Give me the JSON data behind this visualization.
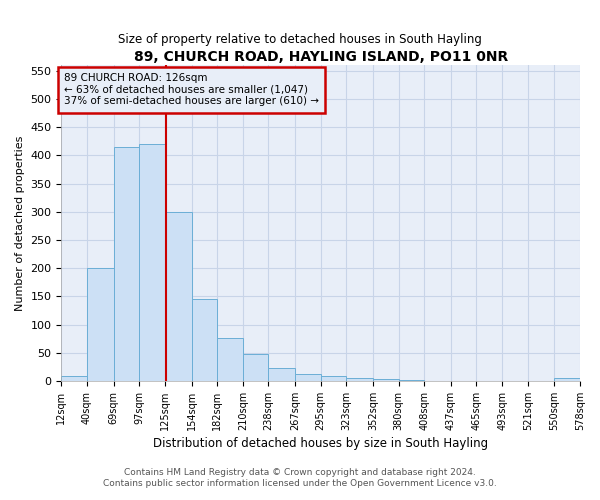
{
  "title": "89, CHURCH ROAD, HAYLING ISLAND, PO11 0NR",
  "subtitle": "Size of property relative to detached houses in South Hayling",
  "xlabel": "Distribution of detached houses by size in South Hayling",
  "ylabel": "Number of detached properties",
  "footer_line1": "Contains HM Land Registry data © Crown copyright and database right 2024.",
  "footer_line2": "Contains public sector information licensed under the Open Government Licence v3.0.",
  "annotation_line1": "89 CHURCH ROAD: 126sqm",
  "annotation_line2": "← 63% of detached houses are smaller (1,047)",
  "annotation_line3": "37% of semi-detached houses are larger (610) →",
  "bar_edges": [
    12,
    40,
    69,
    97,
    125,
    154,
    182,
    210,
    238,
    267,
    295,
    323,
    352,
    380,
    408,
    437,
    465,
    493,
    521,
    550,
    578
  ],
  "bar_heights": [
    8,
    200,
    415,
    420,
    300,
    145,
    77,
    48,
    23,
    12,
    8,
    5,
    3,
    1,
    0,
    0,
    0,
    0,
    0,
    5
  ],
  "bar_color": "#cce0f5",
  "bar_edge_color": "#6baed6",
  "property_line_x": 126,
  "property_line_color": "#cc0000",
  "annotation_box_color": "#cc0000",
  "plot_bg_color": "#e8eef8",
  "fig_bg_color": "#ffffff",
  "grid_color": "#c8d4e8",
  "yticks": [
    0,
    50,
    100,
    150,
    200,
    250,
    300,
    350,
    400,
    450,
    500,
    550
  ],
  "ylim": [
    0,
    560
  ],
  "xlim": [
    12,
    578
  ]
}
